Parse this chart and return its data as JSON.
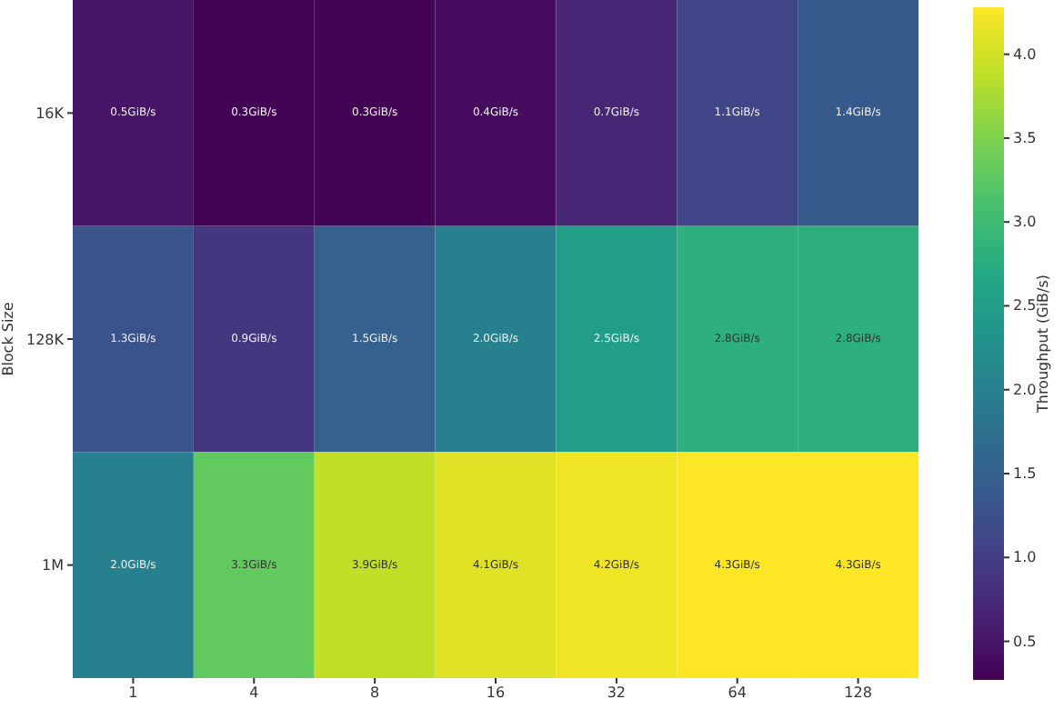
{
  "chart_data": {
    "type": "heatmap",
    "ylabel": "Block Size",
    "clabel": "Throughput (GiB/s)",
    "categories": [
      "1",
      "4",
      "8",
      "16",
      "32",
      "64",
      "128"
    ],
    "y_categories": [
      "16K",
      "128K",
      "1M"
    ],
    "cells": [
      [
        0.5,
        0.3,
        0.3,
        0.4,
        0.7,
        1.1,
        1.4
      ],
      [
        1.3,
        0.9,
        1.5,
        2.0,
        2.5,
        2.8,
        2.8
      ],
      [
        2.0,
        3.3,
        3.9,
        4.1,
        4.2,
        4.3,
        4.3
      ]
    ],
    "cell_labels": [
      [
        "0.5GiB/s",
        "0.3GiB/s",
        "0.3GiB/s",
        "0.4GiB/s",
        "0.7GiB/s",
        "1.1GiB/s",
        "1.4GiB/s"
      ],
      [
        "1.3GiB/s",
        "0.9GiB/s",
        "1.5GiB/s",
        "2.0GiB/s",
        "2.5GiB/s",
        "2.8GiB/s",
        "2.8GiB/s"
      ],
      [
        "2.0GiB/s",
        "3.3GiB/s",
        "3.9GiB/s",
        "4.1GiB/s",
        "4.2GiB/s",
        "4.3GiB/s",
        "4.3GiB/s"
      ]
    ],
    "clim": [
      0.27,
      4.28
    ],
    "cticks": [
      0.5,
      {
        "value": 1,
        "label": "1.0"
      },
      1.5,
      {
        "value": 2,
        "label": "2.0"
      },
      2.5,
      {
        "value": 3,
        "label": "3.0"
      },
      3.5,
      {
        "value": 4,
        "label": "4.0"
      }
    ]
  }
}
